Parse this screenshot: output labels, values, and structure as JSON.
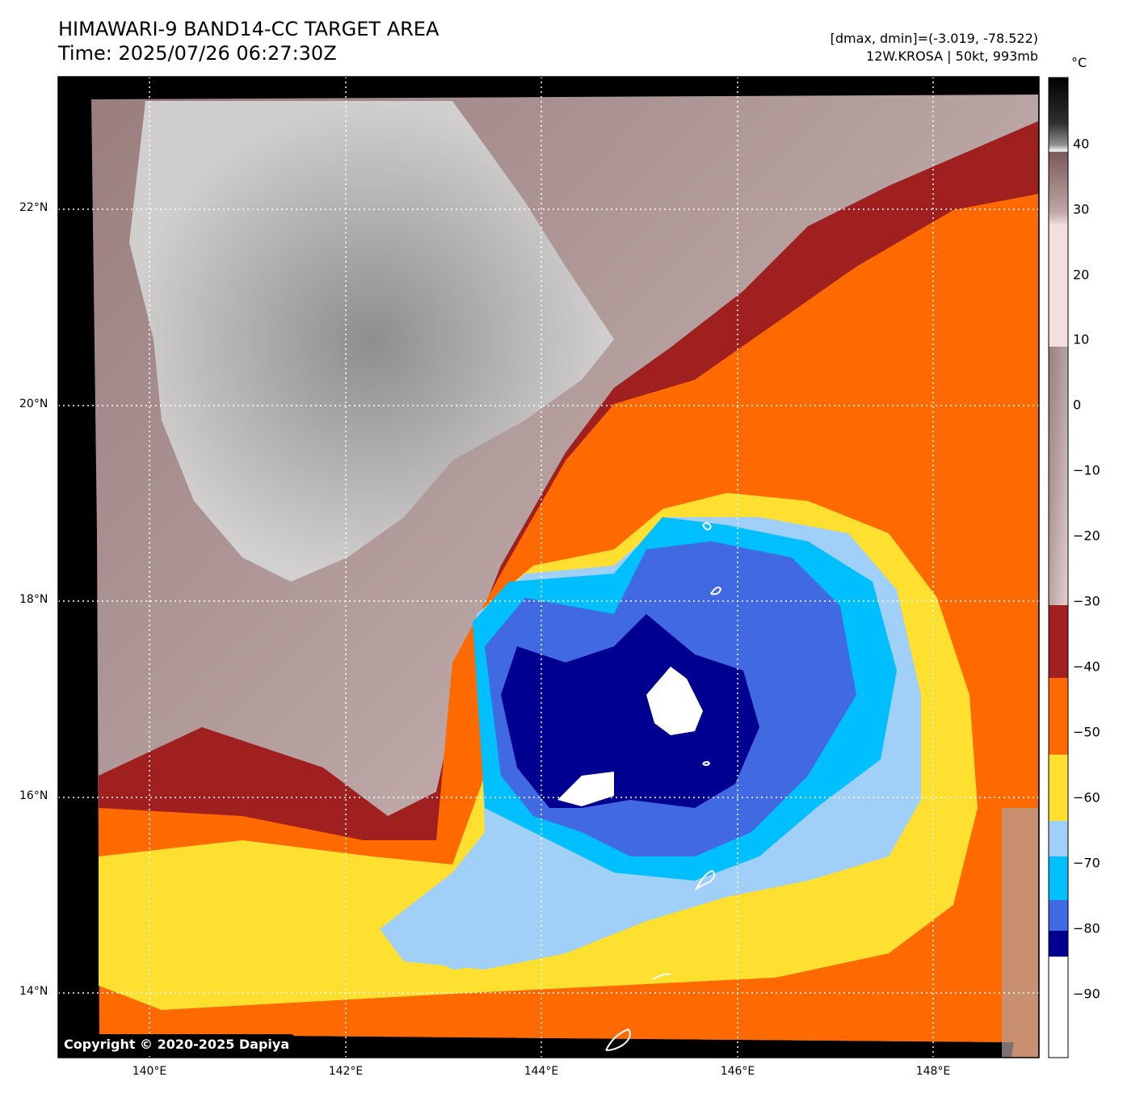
{
  "title": {
    "line1": "HIMAWARI-9 BAND14-CC TARGET AREA",
    "line2": "Time: 2025/07/26 06:27:30Z"
  },
  "meta": {
    "range": "[dmax, dmin]=(-3.019, -78.522)",
    "storm": "12W.KROSA | 50kt, 993mb"
  },
  "colorbar": {
    "unit": "°C",
    "ticks": [
      "40",
      "30",
      "20",
      "10",
      "0",
      "−10",
      "−20",
      "−30",
      "−40",
      "−50",
      "−60",
      "−70",
      "−80",
      "−90"
    ]
  },
  "axes": {
    "lat_labels": [
      "22°N",
      "20°N",
      "18°N",
      "16°N",
      "14°N"
    ],
    "lon_labels": [
      "140°E",
      "142°E",
      "144°E",
      "146°E",
      "148°E"
    ]
  },
  "copyright": "Copyright © 2020-2025 Dapiya",
  "colors": {
    "frame": "#000000",
    "warm_gray": "#b4a4a4",
    "light_gray": "#d8d8d8",
    "dark_red": "#a02020",
    "orange": "#ff6a00",
    "yellow": "#ffe030",
    "light_blue": "#a0cff8",
    "cyan": "#00bfff",
    "blue": "#4169e1",
    "navy": "#000090",
    "white": "#ffffff"
  }
}
